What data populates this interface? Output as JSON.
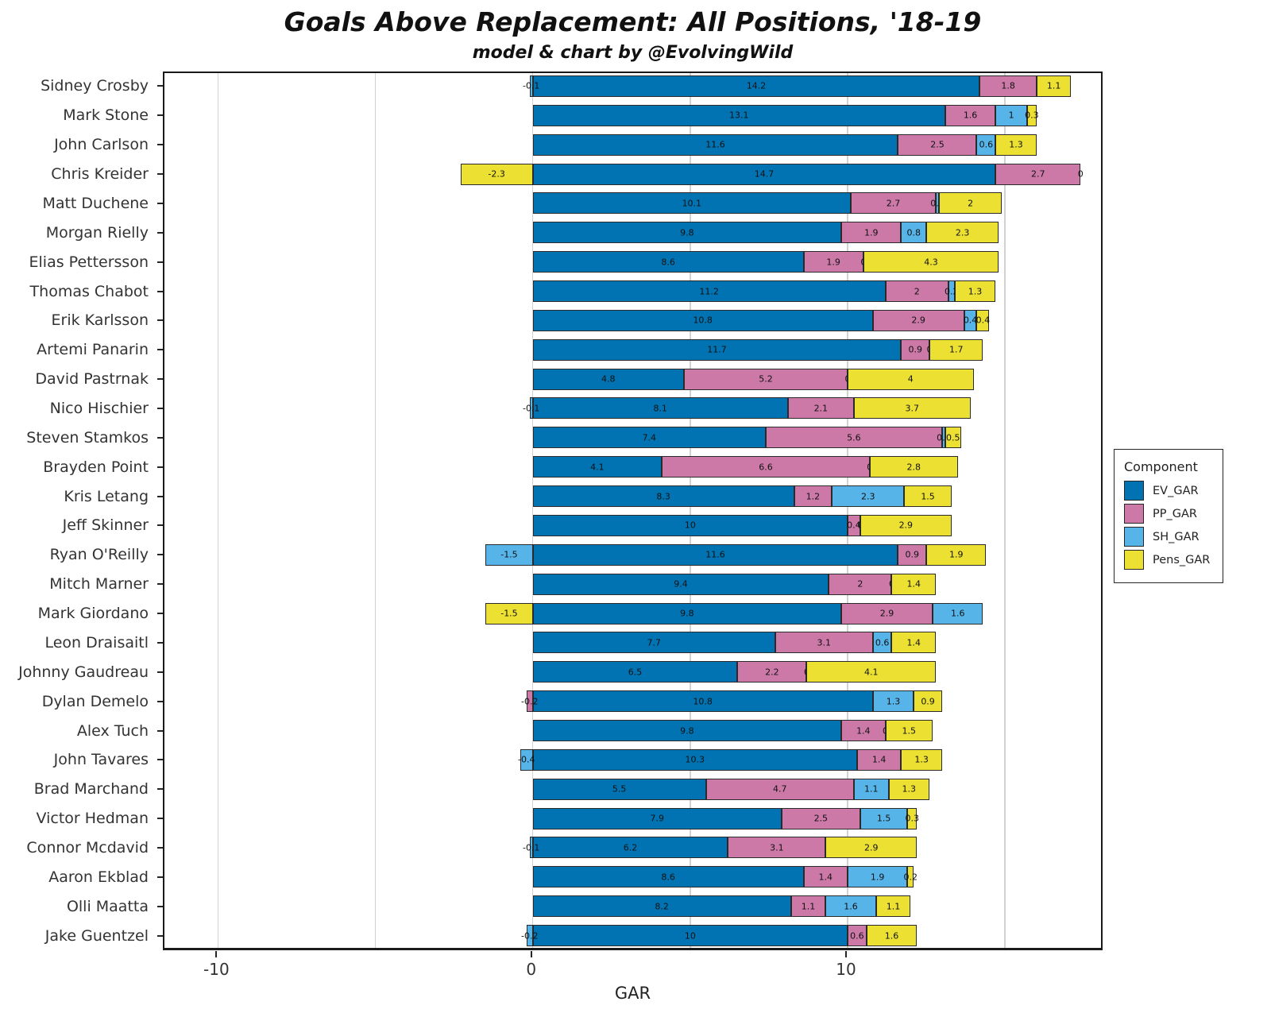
{
  "header": {
    "title": "Goals Above Replacement: All Positions, '18-19",
    "subtitle": "model & chart by @EvolvingWild"
  },
  "chart_data": {
    "type": "bar",
    "orientation": "horizontal-stacked",
    "title": "Goals Above Replacement: All Positions, '18-19",
    "subtitle": "model & chart by @EvolvingWild",
    "xlabel": "GAR",
    "xlim": [
      -11.7,
      18.15
    ],
    "xticks": [
      {
        "value": -10,
        "label": "-10"
      },
      {
        "value": 0,
        "label": "0"
      },
      {
        "value": 10,
        "label": "10"
      }
    ],
    "grid_x": [
      -10,
      -5,
      0,
      5,
      10,
      15
    ],
    "grid": "vertical-only",
    "legend": {
      "title": "Component",
      "position": "right",
      "entries": [
        {
          "key": "ev",
          "label": "EV_GAR",
          "color": "#0173b2"
        },
        {
          "key": "pp",
          "label": "PP_GAR",
          "color": "#cc79a7"
        },
        {
          "key": "sh",
          "label": "SH_GAR",
          "color": "#56b4e9"
        },
        {
          "key": "pens",
          "label": "Pens_GAR",
          "color": "#ece133"
        }
      ]
    },
    "components": [
      "ev",
      "pp",
      "sh",
      "pens"
    ],
    "players": [
      {
        "name": "Sidney Crosby",
        "ev": 14.2,
        "pp": 1.8,
        "sh": -0.1,
        "pens": 1.1,
        "labels": [
          "14.2",
          "1.8",
          "-0.1",
          "1.1"
        ]
      },
      {
        "name": "Mark Stone",
        "ev": 13.1,
        "pp": 1.6,
        "sh": 1,
        "pens": 0.3,
        "labels": [
          "13.1",
          "1.6",
          "1",
          "0.3"
        ]
      },
      {
        "name": "John Carlson",
        "ev": 11.6,
        "pp": 2.5,
        "sh": 0.6,
        "pens": 1.3,
        "labels": [
          "11.6",
          "2.5",
          "0.6",
          "1.3"
        ]
      },
      {
        "name": "Chris Kreider",
        "ev": 14.7,
        "pp": 2.7,
        "sh": 0,
        "pens": -2.3,
        "labels": [
          "14.7",
          "2.7",
          "0",
          "-2.3"
        ]
      },
      {
        "name": "Matt Duchene",
        "ev": 10.1,
        "pp": 2.7,
        "sh": 0.1,
        "pens": 2,
        "labels": [
          "10.1",
          "2.7",
          "0.1",
          "2"
        ]
      },
      {
        "name": "Morgan Rielly",
        "ev": 9.8,
        "pp": 1.9,
        "sh": 0.8,
        "pens": 2.3,
        "labels": [
          "9.8",
          "1.9",
          "0.8",
          "2.3"
        ]
      },
      {
        "name": "Elias Pettersson",
        "ev": 8.6,
        "pp": 1.9,
        "sh": 0,
        "pens": 4.3,
        "labels": [
          "8.6",
          "1.9",
          "0",
          "4.3"
        ]
      },
      {
        "name": "Thomas Chabot",
        "ev": 11.2,
        "pp": 2,
        "sh": 0.2,
        "pens": 1.3,
        "labels": [
          "11.2",
          "2",
          "0.2",
          "1.3"
        ]
      },
      {
        "name": "Erik Karlsson",
        "ev": 10.8,
        "pp": 2.9,
        "sh": 0.4,
        "pens": 0.4,
        "labels": [
          "10.8",
          "2.9",
          "0.4",
          "0.4"
        ]
      },
      {
        "name": "Artemi Panarin",
        "ev": 11.7,
        "pp": 0.9,
        "sh": 0,
        "pens": 1.7,
        "labels": [
          "11.7",
          "0.9",
          "0",
          "1.7"
        ]
      },
      {
        "name": "David Pastrnak",
        "ev": 4.8,
        "pp": 5.2,
        "sh": 0,
        "pens": 4,
        "labels": [
          "4.8",
          "5.2",
          "0",
          "4"
        ]
      },
      {
        "name": "Nico Hischier",
        "ev": 8.1,
        "pp": 2.1,
        "sh": -0.1,
        "pens": 3.7,
        "labels": [
          "8.1",
          "2.1",
          "-0.1",
          "3.7"
        ]
      },
      {
        "name": "Steven Stamkos",
        "ev": 7.4,
        "pp": 5.6,
        "sh": 0.1,
        "pens": 0.5,
        "labels": [
          "7.4",
          "5.6",
          "0.1",
          "0.5"
        ]
      },
      {
        "name": "Brayden Point",
        "ev": 4.1,
        "pp": 6.6,
        "sh": 0,
        "pens": 2.8,
        "labels": [
          "4.1",
          "6.6",
          "0",
          "2.8"
        ]
      },
      {
        "name": "Kris Letang",
        "ev": 8.3,
        "pp": 1.2,
        "sh": 2.3,
        "pens": 1.5,
        "labels": [
          "8.3",
          "1.2",
          "2.3",
          "1.5"
        ]
      },
      {
        "name": "Jeff Skinner",
        "ev": 10,
        "pp": 0.4,
        "sh": 0,
        "pens": 2.9,
        "labels": [
          "10",
          "0.4",
          "0",
          "2.9"
        ]
      },
      {
        "name": "Ryan O'Reilly",
        "ev": 11.6,
        "pp": 0.9,
        "sh": -1.5,
        "pens": 1.9,
        "labels": [
          "11.6",
          "0.9",
          "-1.5",
          "1.9"
        ]
      },
      {
        "name": "Mitch Marner",
        "ev": 9.4,
        "pp": 2,
        "sh": 0,
        "pens": 1.4,
        "labels": [
          "9.4",
          "2",
          "0",
          "1.4"
        ]
      },
      {
        "name": "Mark Giordano",
        "ev": 9.8,
        "pp": 2.9,
        "sh": 1.6,
        "pens": -1.5,
        "labels": [
          "9.8",
          "2.9",
          "1.6",
          "-1.5"
        ]
      },
      {
        "name": "Leon Draisaitl",
        "ev": 7.7,
        "pp": 3.1,
        "sh": 0.6,
        "pens": 1.4,
        "labels": [
          "7.7",
          "3.1",
          "0.6",
          "1.4"
        ]
      },
      {
        "name": "Johnny Gaudreau",
        "ev": 6.5,
        "pp": 2.2,
        "sh": 0,
        "pens": 4.1,
        "labels": [
          "6.5",
          "2.2",
          "0",
          "4.1"
        ]
      },
      {
        "name": "Dylan Demelo",
        "ev": 10.8,
        "pp": -0.2,
        "sh": 1.3,
        "pens": 0.9,
        "labels": [
          "10.8",
          "-0.2",
          "1.3",
          "0.9"
        ]
      },
      {
        "name": "Alex Tuch",
        "ev": 9.8,
        "pp": 1.4,
        "sh": 0,
        "pens": 1.5,
        "labels": [
          "9.8",
          "1.4",
          "0",
          "1.5"
        ]
      },
      {
        "name": "John Tavares",
        "ev": 10.3,
        "pp": 1.4,
        "sh": -0.4,
        "pens": 1.3,
        "labels": [
          "10.3",
          "1.4",
          "-0.4",
          "1.3"
        ]
      },
      {
        "name": "Brad Marchand",
        "ev": 5.5,
        "pp": 4.7,
        "sh": 1.1,
        "pens": 1.3,
        "labels": [
          "5.5",
          "4.7",
          "1.1",
          "1.3"
        ]
      },
      {
        "name": "Victor Hedman",
        "ev": 7.9,
        "pp": 2.5,
        "sh": 1.5,
        "pens": 0.3,
        "labels": [
          "7.9",
          "2.5",
          "1.5",
          "0.3"
        ]
      },
      {
        "name": "Connor Mcdavid",
        "ev": 6.2,
        "pp": 3.1,
        "sh": -0.1,
        "pens": 2.9,
        "labels": [
          "6.2",
          "3.1",
          "-0.1",
          "2.9"
        ]
      },
      {
        "name": "Aaron Ekblad",
        "ev": 8.6,
        "pp": 1.4,
        "sh": 1.9,
        "pens": 0.2,
        "labels": [
          "8.6",
          "1.4",
          "1.9",
          "0.2"
        ]
      },
      {
        "name": "Olli Maatta",
        "ev": 8.2,
        "pp": 1.1,
        "sh": 1.6,
        "pens": 1.1,
        "labels": [
          "8.2",
          "1.1",
          "1.6",
          "1.1"
        ]
      },
      {
        "name": "Jake Guentzel",
        "ev": 10,
        "pp": 0.6,
        "sh": -0.2,
        "pens": 1.6,
        "labels": [
          "10",
          "0.6",
          "-0.2",
          "1.6"
        ]
      }
    ]
  },
  "colors": {
    "ev_gar": "#0173b2",
    "pp_gar": "#cc79a7",
    "sh_gar": "#56b4e9",
    "pens_gar": "#ece133",
    "bar_edge": "#2a2a2a",
    "gridline": "#d2d2d2",
    "axis_text": "#333333",
    "frame": "#1a1a1a",
    "background": "#ffffff"
  }
}
